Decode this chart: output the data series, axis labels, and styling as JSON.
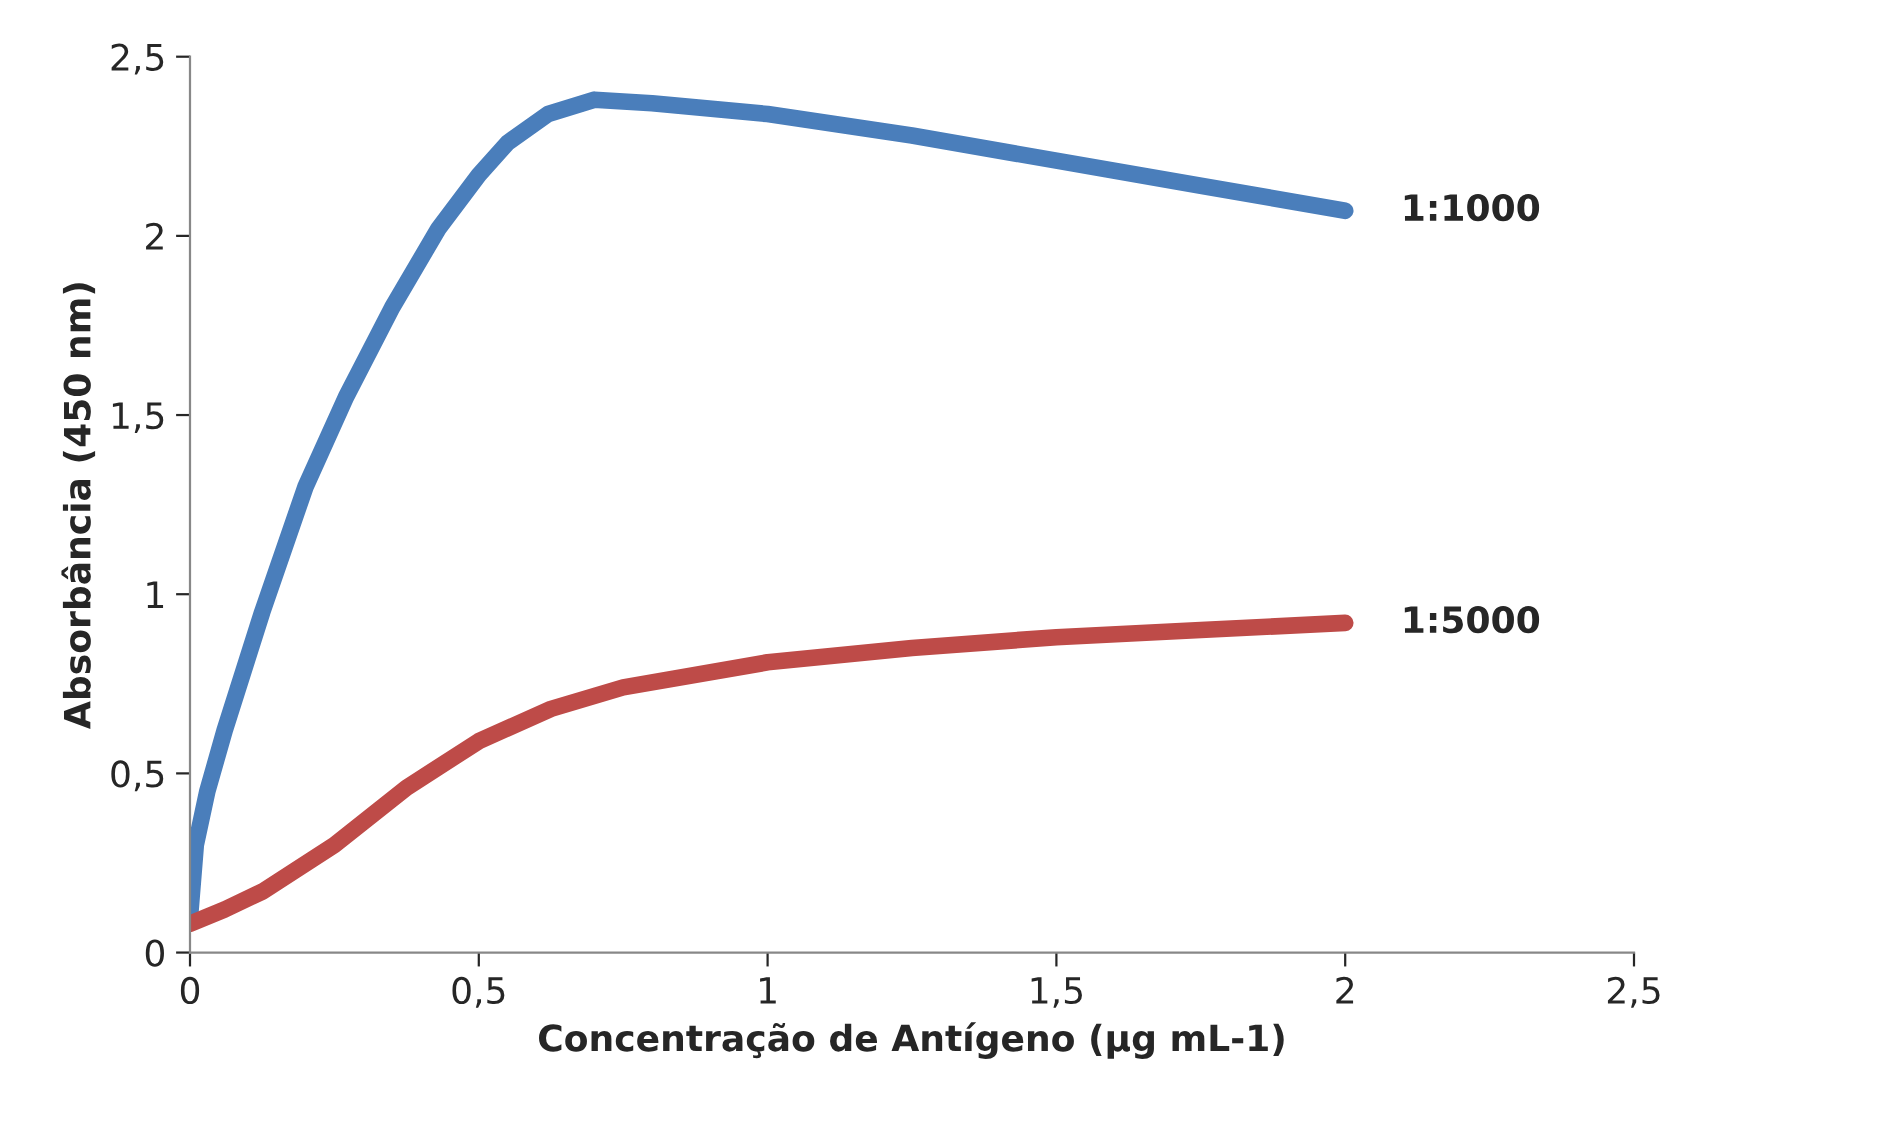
{
  "chart_data": {
    "type": "line",
    "xlabel": "Concentração de Antígeno (µg mL-1)",
    "ylabel": "Absorbância (450 nm)",
    "xlim": [
      0,
      2.5
    ],
    "ylim": [
      0,
      2.5
    ],
    "xticks": [
      0,
      {
        "value": 0.5,
        "label": "0,5"
      },
      1,
      {
        "value": 1.5,
        "label": "1,5"
      },
      2,
      {
        "value": 2.5,
        "label": "2,5"
      }
    ],
    "yticks": [
      0,
      {
        "value": 0.5,
        "label": "0,5"
      },
      1,
      {
        "value": 1.5,
        "label": "1,5"
      },
      2,
      {
        "value": 2.5,
        "label": "2,5"
      }
    ],
    "grid": false,
    "legend": false,
    "marker": "none",
    "line_style": "solid",
    "series": [
      {
        "name": "1:1000",
        "color": "#4a7ebb",
        "x": [
          0,
          0.01,
          0.03,
          0.06,
          0.125,
          0.2,
          0.27,
          0.35,
          0.43,
          0.5,
          0.55,
          0.62,
          0.7,
          0.8,
          1,
          1.25,
          1.5,
          1.75,
          2
        ],
        "values": [
          0.1,
          0.3,
          0.45,
          0.62,
          0.95,
          1.3,
          1.55,
          1.8,
          2.02,
          2.17,
          2.26,
          2.34,
          2.38,
          2.37,
          2.34,
          2.28,
          2.21,
          2.14,
          2.07
        ]
      },
      {
        "name": "1:5000",
        "color": "#be4b48",
        "x": [
          0,
          0.06,
          0.125,
          0.25,
          0.375,
          0.5,
          0.625,
          0.75,
          1,
          1.25,
          1.5,
          1.75,
          2
        ],
        "values": [
          0.08,
          0.12,
          0.17,
          0.3,
          0.46,
          0.59,
          0.68,
          0.74,
          0.81,
          0.85,
          0.88,
          0.9,
          0.92
        ]
      }
    ]
  }
}
